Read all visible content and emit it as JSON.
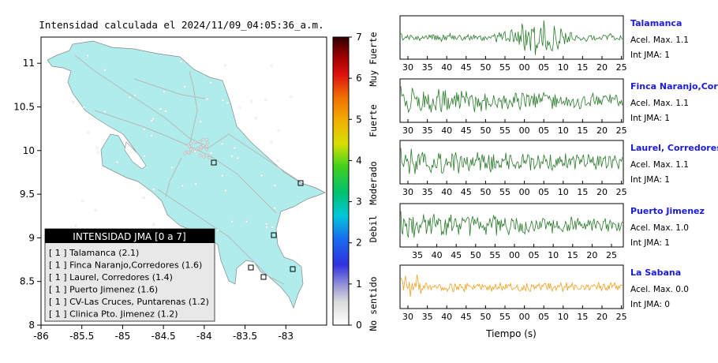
{
  "map": {
    "title": "Intensidad calculada el 2024/11/09_04:05:36_a.m.",
    "lon_ticks": [
      "-86",
      "-85.5",
      "-85",
      "-84.5",
      "-84",
      "-83.5",
      "-83"
    ],
    "lat_ticks": [
      "11",
      "10.5",
      "10",
      "9.5",
      "9",
      "8.5",
      "8"
    ],
    "sea_color": "#ffffff",
    "land_color": "#b0ecec",
    "legend": {
      "title": "INTENSIDAD JMA [0 a 7]",
      "items": [
        "[ 1 ]  Talamanca (2.1)",
        "[ 1 ]  Finca Naranjo,Corredores (1.6)",
        "[ 1 ]  Laurel, Corredores (1.4)",
        "[ 1 ]  Puerto Jimenez (1.6)",
        "[ 1 ]  CV-Las Cruces, Puntarenas (1.2)",
        "[ 1 ]  Clinica Pto. Jimenez (1.2)"
      ]
    }
  },
  "colorbar": {
    "ticks": [
      "0",
      "1",
      "2",
      "3",
      "4",
      "5",
      "6",
      "7"
    ],
    "labels": [
      "No sentido",
      "Debil",
      "Moderado",
      "Fuerte",
      "Muy Fuerte"
    ]
  },
  "waveforms": {
    "xlabel": "Tiempo (s)",
    "stations": [
      {
        "name": "Talamanca",
        "acel": "Acel. Max. 1.1",
        "int": "Int JMA: 1",
        "color": "#2a7a2a",
        "ticks": [
          "30",
          "35",
          "40",
          "45",
          "50",
          "55",
          "00",
          "05",
          "10",
          "15",
          "20",
          "25"
        ]
      },
      {
        "name": "Finca Naranjo,Corredores",
        "acel": "Acel. Max. 1.1",
        "int": "Int JMA: 1",
        "color": "#2a7a2a",
        "ticks": [
          "30",
          "35",
          "40",
          "45",
          "50",
          "55",
          "00",
          "05",
          "10",
          "15",
          "20",
          "25"
        ]
      },
      {
        "name": "Laurel, Corredores",
        "acel": "Acel. Max. 1.1",
        "int": "Int JMA: 1",
        "color": "#2a7a2a",
        "ticks": [
          "30",
          "35",
          "40",
          "45",
          "50",
          "55",
          "00",
          "05",
          "10",
          "15",
          "20",
          "25"
        ]
      },
      {
        "name": "Puerto Jimenez",
        "acel": "Acel. Max. 1.0",
        "int": "Int JMA: 1",
        "color": "#2a7a2a",
        "ticks": [
          "35",
          "40",
          "45",
          "50",
          "55",
          "00",
          "05",
          "10",
          "15",
          "20",
          "25",
          "30"
        ]
      },
      {
        "name": "La Sabana",
        "acel": "Acel. Max. 0.0",
        "int": "Int JMA: 0",
        "color": "#f0a020",
        "ticks": [
          "30",
          "35",
          "40",
          "45",
          "50",
          "55",
          "00",
          "05",
          "10",
          "15",
          "20",
          "25"
        ]
      }
    ]
  },
  "chart_data": {
    "type": "scatter",
    "xlabel": "",
    "ylabel": "",
    "xlim": [
      -86,
      -82.5
    ],
    "ylim": [
      8,
      11.3
    ],
    "stations": [
      {
        "label": "1",
        "lon": -84.06,
        "lat": 9.84
      },
      {
        "label": "1",
        "lon": -83.15,
        "lat": 9.62
      },
      {
        "label": "1",
        "lon": -83.18,
        "lat": 9.04
      },
      {
        "label": "1",
        "lon": -82.96,
        "lat": 8.62
      },
      {
        "label": "1",
        "lon": -83.27,
        "lat": 8.55
      },
      {
        "label": "1",
        "lon": -83.45,
        "lat": 8.62
      }
    ]
  }
}
